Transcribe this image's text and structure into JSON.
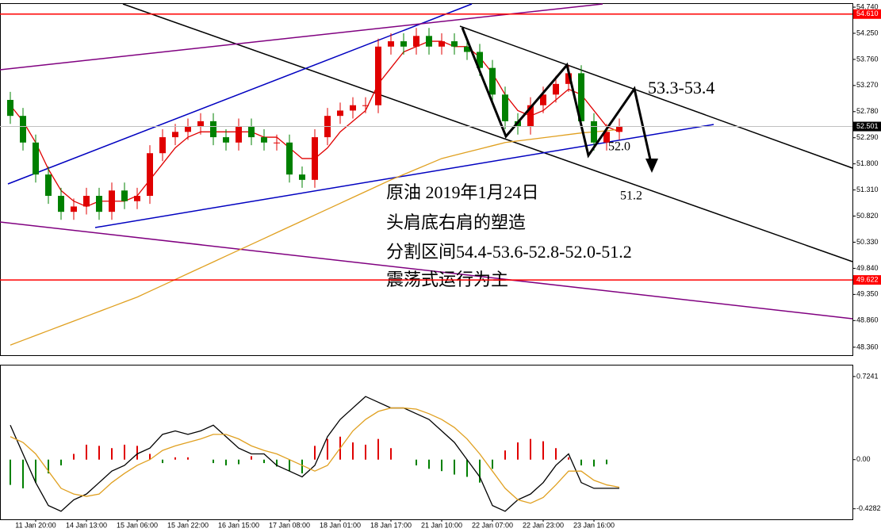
{
  "chart_data": {
    "type": "candlestick",
    "categories": [
      null,
      null,
      "11 Jan 20:00",
      null,
      null,
      null,
      "14 Jan 13:00",
      null,
      null,
      null,
      "15 Jan 06:00",
      null,
      null,
      null,
      "15 Jan 22:00",
      null,
      null,
      null,
      "16 Jan 15:00",
      null,
      null,
      null,
      "17 Jan 08:00",
      null,
      null,
      null,
      "18 Jan 01:00",
      null,
      null,
      null,
      "18 Jan 17:00",
      null,
      null,
      null,
      "21 Jan 10:00",
      null,
      null,
      null,
      "22 Jan 07:00",
      null,
      null,
      null,
      "22 Jan 23:00",
      null,
      null,
      null,
      "23 Jan 16:00",
      null,
      null
    ],
    "open": [
      53.0,
      52.7,
      52.2,
      51.6,
      51.2,
      50.9,
      51.0,
      51.2,
      50.9,
      51.3,
      51.1,
      51.2,
      52.0,
      52.3,
      52.4,
      52.5,
      52.6,
      52.3,
      52.2,
      52.5,
      52.3,
      52.2,
      52.2,
      51.6,
      51.5,
      52.3,
      52.7,
      52.8,
      52.9,
      52.9,
      54.0,
      54.1,
      54.0,
      54.2,
      54.0,
      54.1,
      54.0,
      53.9,
      53.6,
      53.1,
      52.6,
      52.5,
      52.9,
      53.1,
      53.3,
      53.5,
      52.6,
      52.2,
      52.4
    ],
    "high": [
      53.15,
      52.85,
      52.35,
      51.75,
      51.35,
      51.15,
      51.35,
      51.35,
      51.45,
      51.45,
      51.35,
      52.15,
      52.45,
      52.55,
      52.65,
      52.75,
      52.75,
      52.45,
      52.65,
      52.65,
      52.45,
      52.35,
      52.35,
      51.75,
      52.45,
      52.85,
      52.95,
      53.05,
      53.05,
      54.15,
      54.25,
      54.25,
      54.35,
      54.35,
      54.25,
      54.25,
      54.15,
      54.05,
      53.75,
      53.25,
      52.75,
      53.05,
      53.25,
      53.45,
      53.65,
      53.65,
      52.75,
      52.55,
      52.65
    ],
    "low": [
      52.55,
      52.05,
      51.45,
      51.05,
      50.75,
      50.75,
      50.85,
      50.75,
      50.75,
      50.95,
      50.95,
      51.05,
      51.85,
      52.15,
      52.25,
      52.35,
      52.15,
      52.05,
      52.05,
      52.15,
      52.05,
      52.05,
      51.45,
      51.35,
      51.35,
      52.15,
      52.55,
      52.65,
      52.75,
      52.75,
      53.85,
      53.85,
      53.85,
      53.85,
      53.85,
      53.85,
      53.75,
      53.45,
      52.95,
      52.45,
      52.35,
      52.35,
      52.75,
      52.95,
      53.15,
      52.45,
      52.05,
      52.05,
      52.25
    ],
    "close": [
      52.7,
      52.2,
      51.6,
      51.2,
      50.9,
      51.0,
      51.2,
      50.9,
      51.3,
      51.1,
      51.2,
      52.0,
      52.3,
      52.4,
      52.5,
      52.6,
      52.3,
      52.2,
      52.5,
      52.3,
      52.2,
      52.2,
      51.6,
      51.5,
      52.3,
      52.7,
      52.8,
      52.9,
      52.9,
      54.0,
      54.1,
      54.0,
      54.2,
      54.0,
      54.1,
      54.0,
      53.9,
      53.6,
      53.1,
      52.6,
      52.5,
      52.9,
      53.1,
      53.3,
      53.5,
      52.6,
      52.2,
      52.4,
      52.5
    ],
    "up_color": "#e00000",
    "down_color": "#008000",
    "overlays": [
      {
        "color": "#e00000",
        "values": [
          52.9,
          52.6,
          52.2,
          51.7,
          51.3,
          51.1,
          51.0,
          51.1,
          51.1,
          51.1,
          51.2,
          51.5,
          51.8,
          52.1,
          52.3,
          52.4,
          52.4,
          52.4,
          52.4,
          52.4,
          52.3,
          52.3,
          52.1,
          51.9,
          51.9,
          52.1,
          52.4,
          52.6,
          52.8,
          53.3,
          53.6,
          53.9,
          54.0,
          54.1,
          54.1,
          54.0,
          54.0,
          53.8,
          53.5,
          53.1,
          52.8,
          52.7,
          52.8,
          53.0,
          53.2,
          53.1,
          52.8,
          52.5,
          52.4
        ]
      },
      {
        "color": "#e0a020",
        "values": [
          48.4,
          48.49,
          48.58,
          48.67,
          48.76,
          48.85,
          48.94,
          49.03,
          49.12,
          49.21,
          49.3,
          49.41,
          49.52,
          49.63,
          49.74,
          49.85,
          49.96,
          50.07,
          50.18,
          50.29,
          50.4,
          50.51,
          50.62,
          50.73,
          50.84,
          50.95,
          51.06,
          51.17,
          51.28,
          51.39,
          51.5,
          51.6,
          51.7,
          51.8,
          51.9,
          51.96,
          52.02,
          52.08,
          52.14,
          52.2,
          52.23,
          52.26,
          52.29,
          52.32,
          52.35,
          52.38,
          52.4,
          52.42,
          52.45
        ]
      }
    ],
    "ylim": [
      48.21,
      54.8
    ],
    "yticks": [
      {
        "value": 54.74,
        "label": "54.740"
      },
      {
        "value": 54.25,
        "label": "54.250"
      },
      {
        "value": 53.76,
        "label": "53.760"
      },
      {
        "value": 53.27,
        "label": "53.270"
      },
      {
        "value": 52.78,
        "label": "52.780"
      },
      {
        "value": 52.29,
        "label": "52.290"
      },
      {
        "value": 51.8,
        "label": "51.800"
      },
      {
        "value": 51.31,
        "label": "51.310"
      },
      {
        "value": 50.82,
        "label": "50.820"
      },
      {
        "value": 50.33,
        "label": "50.330"
      },
      {
        "value": 49.84,
        "label": "49.840"
      },
      {
        "value": 49.35,
        "label": "49.350"
      },
      {
        "value": 48.86,
        "label": "48.860"
      },
      {
        "value": 48.36,
        "label": "48.360"
      }
    ],
    "hlines": [
      {
        "value": 54.61,
        "label": "54.610",
        "color": "#ff0000"
      },
      {
        "value": 49.622,
        "color": "#ff0000"
      }
    ],
    "current": {
      "value": 52.501,
      "color": "#c0c0c0"
    },
    "annotations": [
      "53.3-53.4",
      "52.0",
      "51.2"
    ],
    "notes": [
      "原油 2019年1月24日",
      "头肩底右肩的塑造",
      "分割区间54.4-53.6-52.8-52.0-51.2",
      "震荡式运行为主"
    ],
    "macd": {
      "ylim": [
        -0.52,
        0.82
      ],
      "yticks": [
        0.7241,
        {
          "value": 0,
          "label": "0.00"
        },
        -0.4282
      ],
      "up_color": "#e00000",
      "down_color": "#008000",
      "histogram": [
        -0.22,
        -0.25,
        -0.2,
        -0.12,
        -0.05,
        0.05,
        0.13,
        0.12,
        0.1,
        0.13,
        0.12,
        0.05,
        -0.03,
        0.02,
        0.02,
        0.0,
        -0.03,
        -0.05,
        -0.04,
        0.03,
        -0.03,
        -0.06,
        -0.1,
        -0.12,
        0.12,
        0.18,
        0.2,
        0.15,
        0.13,
        0.18,
        0.1,
        0.0,
        -0.05,
        -0.08,
        -0.1,
        -0.13,
        -0.15,
        -0.2,
        -0.08,
        0.08,
        0.15,
        0.18,
        0.16,
        0.1,
        0.02,
        -0.05,
        -0.06,
        -0.04,
        0.0
      ],
      "line": {
        "color": "#000000",
        "values": [
          0.3,
          0.05,
          -0.2,
          -0.4,
          -0.45,
          -0.35,
          -0.3,
          -0.2,
          -0.1,
          -0.05,
          0.05,
          0.1,
          0.22,
          0.25,
          0.22,
          0.25,
          0.3,
          0.2,
          0.1,
          0.05,
          0.05,
          -0.05,
          -0.1,
          -0.15,
          -0.05,
          0.2,
          0.35,
          0.45,
          0.55,
          0.5,
          0.45,
          0.45,
          0.4,
          0.35,
          0.25,
          0.15,
          0.0,
          -0.15,
          -0.4,
          -0.45,
          -0.35,
          -0.3,
          -0.2,
          -0.05,
          0.05,
          -0.2,
          -0.25,
          -0.25,
          -0.25
        ]
      },
      "signal": {
        "color": "#e0a020",
        "values": [
          0.2,
          0.15,
          0.05,
          -0.1,
          -0.25,
          -0.3,
          -0.32,
          -0.3,
          -0.2,
          -0.12,
          -0.05,
          0.0,
          0.08,
          0.12,
          0.15,
          0.18,
          0.22,
          0.22,
          0.18,
          0.12,
          0.08,
          0.05,
          0.0,
          -0.05,
          -0.1,
          -0.05,
          0.1,
          0.25,
          0.35,
          0.42,
          0.45,
          0.45,
          0.44,
          0.4,
          0.35,
          0.28,
          0.18,
          0.05,
          -0.1,
          -0.25,
          -0.35,
          -0.38,
          -0.33,
          -0.22,
          -0.1,
          -0.1,
          -0.18,
          -0.22,
          -0.24
        ]
      }
    }
  }
}
